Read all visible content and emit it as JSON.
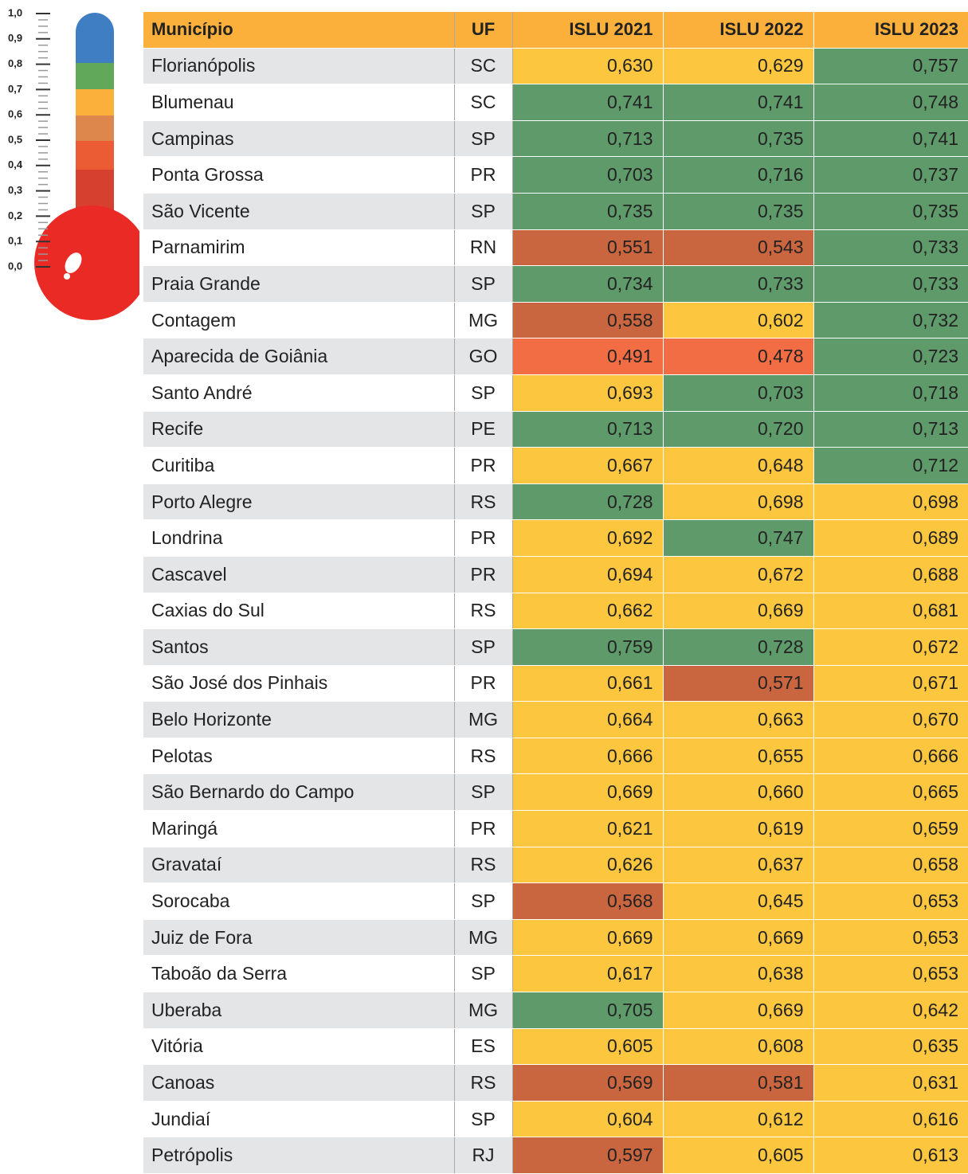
{
  "scale": [
    "1,0",
    "0,9",
    "0,8",
    "0,7",
    "0,6",
    "0,5",
    "0,4",
    "0,3",
    "0,2",
    "0,1",
    "0,0"
  ],
  "table": {
    "header": [
      "Município",
      "UF",
      "ISLU 2021",
      "ISLU 2022",
      "ISLU 2023"
    ],
    "rows": [
      [
        "Florianópolis",
        "SC",
        "0,630",
        "0,629",
        "0,757"
      ],
      [
        "Blumenau",
        "SC",
        "0,741",
        "0,741",
        "0,748"
      ],
      [
        "Campinas",
        "SP",
        "0,713",
        "0,735",
        "0,741"
      ],
      [
        "Ponta Grossa",
        "PR",
        "0,703",
        "0,716",
        "0,737"
      ],
      [
        "São Vicente",
        "SP",
        "0,735",
        "0,735",
        "0,735"
      ],
      [
        "Parnamirim",
        "RN",
        "0,551",
        "0,543",
        "0,733"
      ],
      [
        "Praia Grande",
        "SP",
        "0,734",
        "0,733",
        "0,733"
      ],
      [
        "Contagem",
        "MG",
        "0,558",
        "0,602",
        "0,732"
      ],
      [
        "Aparecida de Goiânia",
        "GO",
        "0,491",
        "0,478",
        "0,723"
      ],
      [
        "Santo André",
        "SP",
        "0,693",
        "0,703",
        "0,718"
      ],
      [
        "Recife",
        "PE",
        "0,713",
        "0,720",
        "0,713"
      ],
      [
        "Curitiba",
        "PR",
        "0,667",
        "0,648",
        "0,712"
      ],
      [
        "Porto Alegre",
        "RS",
        "0,728",
        "0,698",
        "0,698"
      ],
      [
        "Londrina",
        "PR",
        "0,692",
        "0,747",
        "0,689"
      ],
      [
        "Cascavel",
        "PR",
        "0,694",
        "0,672",
        "0,688"
      ],
      [
        "Caxias do Sul",
        "RS",
        "0,662",
        "0,669",
        "0,681"
      ],
      [
        "Santos",
        "SP",
        "0,759",
        "0,728",
        "0,672"
      ],
      [
        "São José dos Pinhais",
        "PR",
        "0,661",
        "0,571",
        "0,671"
      ],
      [
        "Belo Horizonte",
        "MG",
        "0,664",
        "0,663",
        "0,670"
      ],
      [
        "Pelotas",
        "RS",
        "0,666",
        "0,655",
        "0,666"
      ],
      [
        "São Bernardo do Campo",
        "SP",
        "0,669",
        "0,660",
        "0,665"
      ],
      [
        "Maringá",
        "PR",
        "0,621",
        "0,619",
        "0,659"
      ],
      [
        "Gravataí",
        "RS",
        "0,626",
        "0,637",
        "0,658"
      ],
      [
        "Sorocaba",
        "SP",
        "0,568",
        "0,645",
        "0,653"
      ],
      [
        "Juiz de Fora",
        "MG",
        "0,669",
        "0,669",
        "0,653"
      ],
      [
        "Taboão da Serra",
        "SP",
        "0,617",
        "0,638",
        "0,653"
      ],
      [
        "Uberaba",
        "MG",
        "0,705",
        "0,669",
        "0,642"
      ],
      [
        "Vitória",
        "ES",
        "0,605",
        "0,608",
        "0,635"
      ],
      [
        "Canoas",
        "RS",
        "0,569",
        "0,581",
        "0,631"
      ],
      [
        "Jundiaí",
        "SP",
        "0,604",
        "0,612",
        "0,616"
      ],
      [
        "Petrópolis",
        "RJ",
        "0,597",
        "0,605",
        "0,613"
      ]
    ],
    "colors": [
      [
        "#fdc63f",
        "#fdc63f",
        "#5f9a6b"
      ],
      [
        "#5f9a6b",
        "#5f9a6b",
        "#5f9a6b"
      ],
      [
        "#5f9a6b",
        "#5f9a6b",
        "#5f9a6b"
      ],
      [
        "#5f9a6b",
        "#5f9a6b",
        "#5f9a6b"
      ],
      [
        "#5f9a6b",
        "#5f9a6b",
        "#5f9a6b"
      ],
      [
        "#c9653f",
        "#c9653f",
        "#5f9a6b"
      ],
      [
        "#5f9a6b",
        "#5f9a6b",
        "#5f9a6b"
      ],
      [
        "#c9653f",
        "#fdc63f",
        "#5f9a6b"
      ],
      [
        "#f26d43",
        "#f26d43",
        "#5f9a6b"
      ],
      [
        "#fdc63f",
        "#5f9a6b",
        "#5f9a6b"
      ],
      [
        "#5f9a6b",
        "#5f9a6b",
        "#5f9a6b"
      ],
      [
        "#fdc63f",
        "#fdc63f",
        "#5f9a6b"
      ],
      [
        "#5f9a6b",
        "#fdc63f",
        "#fdc63f"
      ],
      [
        "#fdc63f",
        "#5f9a6b",
        "#fdc63f"
      ],
      [
        "#fdc63f",
        "#fdc63f",
        "#fdc63f"
      ],
      [
        "#fdc63f",
        "#fdc63f",
        "#fdc63f"
      ],
      [
        "#5f9a6b",
        "#5f9a6b",
        "#fdc63f"
      ],
      [
        "#fdc63f",
        "#c9653f",
        "#fdc63f"
      ],
      [
        "#fdc63f",
        "#fdc63f",
        "#fdc63f"
      ],
      [
        "#fdc63f",
        "#fdc63f",
        "#fdc63f"
      ],
      [
        "#fdc63f",
        "#fdc63f",
        "#fdc63f"
      ],
      [
        "#fdc63f",
        "#fdc63f",
        "#fdc63f"
      ],
      [
        "#fdc63f",
        "#fdc63f",
        "#fdc63f"
      ],
      [
        "#c9653f",
        "#fdc63f",
        "#fdc63f"
      ],
      [
        "#fdc63f",
        "#fdc63f",
        "#fdc63f"
      ],
      [
        "#fdc63f",
        "#fdc63f",
        "#fdc63f"
      ],
      [
        "#5f9a6b",
        "#fdc63f",
        "#fdc63f"
      ],
      [
        "#fdc63f",
        "#fdc63f",
        "#fdc63f"
      ],
      [
        "#c9653f",
        "#c9653f",
        "#fdc63f"
      ],
      [
        "#fdc63f",
        "#fdc63f",
        "#fdc63f"
      ],
      [
        "#c9653f",
        "#fdc63f",
        "#fdc63f"
      ]
    ]
  }
}
